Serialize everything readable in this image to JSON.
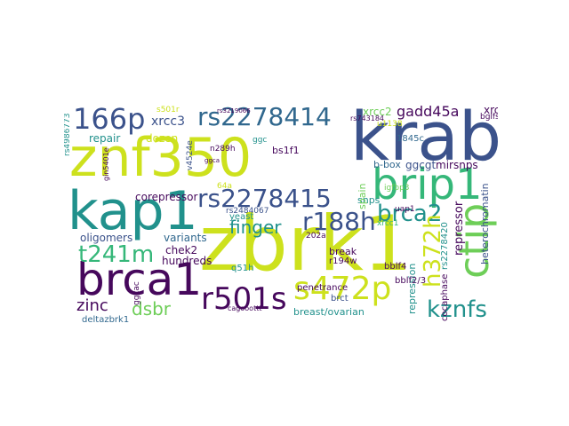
{
  "colors": {
    "dark_purple": "#46085c",
    "indigo": "#3b528b",
    "blue": "#31688e",
    "teal": "#21918c",
    "green": "#35b779",
    "lime": "#6ece58",
    "yellow": "#cde11d"
  },
  "words": {
    "znf350": "znf350",
    "zbrk1": "zbrk1",
    "krab": "krab",
    "kap1": "kap1",
    "brca1": "brca1",
    "brip1": "brip1",
    "ctip": "ctip",
    "s472p": "s472p",
    "r501s": "r501s",
    "rs2278414": "rs2278414",
    "rs2278415": "rs2278415",
    "l66p": "166p",
    "r188h": "r188h",
    "brca2": "brca2",
    "h372h": "h372h",
    "t241m": "t241m",
    "kznfs": "kznfs",
    "finger": "finger",
    "gadd45a": "gadd45a",
    "repressor": "repressor",
    "dsbr": "dsbr",
    "zinc": "zinc",
    "xrcc3": "xrcc3",
    "xrcc2": "xrcc2",
    "xrcc4": "xrcc4",
    "dozen": "dozen",
    "repair": "repair",
    "corepressor": "corepressor",
    "oligomers": "oligomers",
    "variants": "variants",
    "hundreds": "hundreds",
    "chek2": "chek2",
    "snps": "snps",
    "spain": "spain",
    "mirsnps": "mirsnps",
    "ggcgt": "ggcgt",
    "b_box": "b-box",
    "heterochromatin": "heterochromatin",
    "repression": "repression",
    "breast_ovarian": "breast/ovarian",
    "penetrance": "penetrance",
    "brct": "brct",
    "break": "break",
    "r194w": "r194w",
    "bblf4": "bblf4",
    "bblf2_3": "bblf2/3",
    "rs2278420": "rs2278420",
    "cocaphase": "cocaphase",
    "deltazbrk1": "deltazbrk1",
    "yeast": "yeast",
    "q51h": "q51h",
    "ggcac": "ggcac",
    "bs1f1": "bs1f1",
    "n289h": "n289h",
    "rs2484067": "rs2484067",
    "rs4986773": "rs4986773",
    "v4524e": "v4524e",
    "s501r": "s501r",
    "t845c": "1845c",
    "r202a": "202a",
    "xrcc1": "xrcc1",
    "igfbp3": "igfbp3",
    "uap1": "uap1",
    "u1138": "u1138",
    "rs743184": "rs743184",
    "cagooottt": "cagooottt",
    "ggc": "ggc",
    "bglfs": "bglfs",
    "gin5401e": "gin5401e",
    "a64": "64a",
    "rs3219066": "rs3219066",
    "ggca": "ggca"
  }
}
